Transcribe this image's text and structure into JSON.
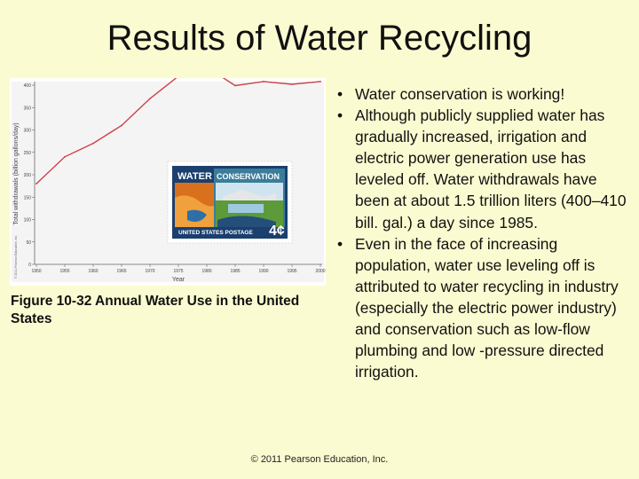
{
  "slide": {
    "title": "Results of Water Recycling",
    "caption": "Figure 10-32  Annual Water Use in the United States",
    "bullets": [
      "Water conservation is working!",
      "Although publicly supplied water has gradually increased, irrigation and electric power generation use has leveled off. Water withdrawals have been at about 1.5 trillion liters (400–410 bill. gal.) a day since 1985.",
      "Even in the face of increasing population, water use leveling off is attributed to water recycling in industry (especially the electric power industry) and conservation such as low-flow plumbing and low -pressure directed irrigation."
    ],
    "footer": "© 2011 Pearson Education, Inc."
  },
  "chart_data": {
    "type": "line",
    "xlabel": "Year",
    "ylabel": "Total withdrawals (billion gallons/day)",
    "x": [
      1950,
      1955,
      1960,
      1965,
      1970,
      1975,
      1980,
      1985,
      1990,
      1995,
      2000
    ],
    "xticks": [
      "1950",
      "1955",
      "1960",
      "1965",
      "1970",
      "1975",
      "1980",
      "1985",
      "1990",
      "1995",
      "2000"
    ],
    "yticks": [
      "0",
      "50",
      "100",
      "150",
      "200",
      "250",
      "300",
      "350",
      "400"
    ],
    "xlim": [
      1950,
      2000
    ],
    "ylim": [
      0,
      400
    ],
    "grid": false,
    "series": [
      {
        "values": [
          180,
          240,
          270,
          310,
          370,
          420,
          440,
          399,
          408,
          402,
          408
        ],
        "color": "#d0404a"
      }
    ],
    "side_note": "© 2011 Pearson Education, Inc.",
    "stamp": {
      "word1": "WATER",
      "word2": "CONSERVATION",
      "country": "UNITED STATES POSTAGE",
      "value": "4¢"
    }
  }
}
